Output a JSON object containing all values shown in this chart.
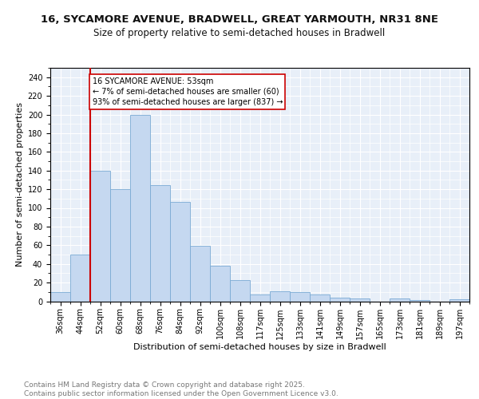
{
  "title_line1": "16, SYCAMORE AVENUE, BRADWELL, GREAT YARMOUTH, NR31 8NE",
  "title_line2": "Size of property relative to semi-detached houses in Bradwell",
  "xlabel": "Distribution of semi-detached houses by size in Bradwell",
  "ylabel": "Number of semi-detached properties",
  "bar_labels": [
    "36sqm",
    "44sqm",
    "52sqm",
    "60sqm",
    "68sqm",
    "76sqm",
    "84sqm",
    "92sqm",
    "100sqm",
    "108sqm",
    "117sqm",
    "125sqm",
    "133sqm",
    "141sqm",
    "149sqm",
    "157sqm",
    "165sqm",
    "173sqm",
    "181sqm",
    "189sqm",
    "197sqm"
  ],
  "bar_values": [
    10,
    50,
    140,
    120,
    200,
    124,
    106,
    59,
    38,
    23,
    7,
    11,
    10,
    7,
    4,
    3,
    0,
    3,
    1,
    0,
    2
  ],
  "bar_color": "#c5d8f0",
  "bar_edge_color": "#7aaad4",
  "highlight_line_color": "#cc0000",
  "annotation_text": "16 SYCAMORE AVENUE: 53sqm\n← 7% of semi-detached houses are smaller (60)\n93% of semi-detached houses are larger (837) →",
  "annotation_box_color": "#ffffff",
  "annotation_box_edge_color": "#cc0000",
  "ylim": [
    0,
    250
  ],
  "yticks": [
    0,
    20,
    40,
    60,
    80,
    100,
    120,
    140,
    160,
    180,
    200,
    220,
    240
  ],
  "background_color": "#e8eff8",
  "footer_text": "Contains HM Land Registry data © Crown copyright and database right 2025.\nContains public sector information licensed under the Open Government Licence v3.0.",
  "title_fontsize": 9.5,
  "subtitle_fontsize": 8.5,
  "axis_label_fontsize": 8,
  "tick_fontsize": 7,
  "footer_fontsize": 6.5,
  "annotation_fontsize": 7
}
